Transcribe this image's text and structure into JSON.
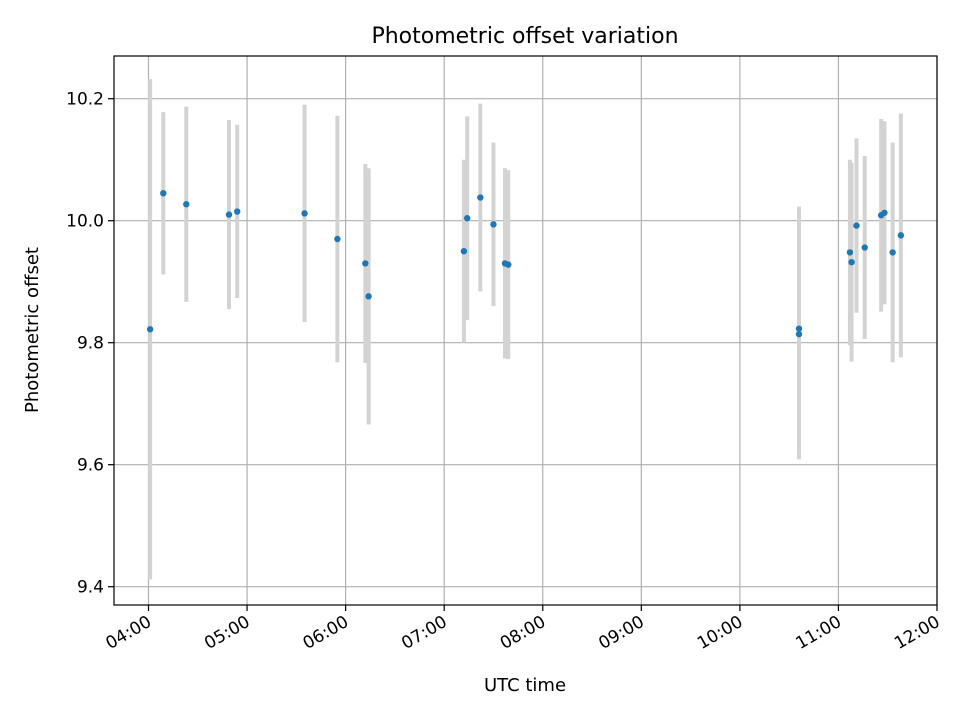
{
  "chart_data": {
    "type": "scatter",
    "title": "Photometric offset variation",
    "xlabel": "UTC time",
    "ylabel": "Photometric offset",
    "x_unit": "time of day (HH:MM)",
    "xlim": [
      "03:39",
      "12:00"
    ],
    "ylim": [
      9.37,
      10.27
    ],
    "x_ticks": [
      "04:00",
      "05:00",
      "06:00",
      "07:00",
      "08:00",
      "09:00",
      "10:00",
      "11:00",
      "12:00"
    ],
    "y_ticks": [
      "9.4",
      "9.6",
      "9.8",
      "10.0",
      "10.2"
    ],
    "grid": true,
    "colors": {
      "point": "#1f77b4",
      "errorbar": "#d3d3d3",
      "grid": "#b0b0b0"
    },
    "points": [
      {
        "x": "04:01",
        "y": 9.822,
        "yerr": 0.41
      },
      {
        "x": "04:09",
        "y": 10.045,
        "yerr": 0.133
      },
      {
        "x": "04:23",
        "y": 10.027,
        "yerr": 0.16
      },
      {
        "x": "04:49",
        "y": 10.01,
        "yerr": 0.155
      },
      {
        "x": "04:54",
        "y": 10.015,
        "yerr": 0.142
      },
      {
        "x": "05:35",
        "y": 10.012,
        "yerr": 0.178
      },
      {
        "x": "05:55",
        "y": 9.97,
        "yerr": 0.202
      },
      {
        "x": "06:12",
        "y": 9.93,
        "yerr": 0.163
      },
      {
        "x": "06:14",
        "y": 9.876,
        "yerr": 0.21
      },
      {
        "x": "07:12",
        "y": 9.95,
        "yerr": 0.15
      },
      {
        "x": "07:14",
        "y": 10.004,
        "yerr": 0.167
      },
      {
        "x": "07:22",
        "y": 10.038,
        "yerr": 0.154
      },
      {
        "x": "07:30",
        "y": 9.994,
        "yerr": 0.134
      },
      {
        "x": "07:37",
        "y": 9.93,
        "yerr": 0.156
      },
      {
        "x": "07:39",
        "y": 9.928,
        "yerr": 0.155
      },
      {
        "x": "10:36",
        "y": 9.823,
        "yerr": 0.2
      },
      {
        "x": "10:36",
        "y": 9.814,
        "yerr": 0.205
      },
      {
        "x": "11:07",
        "y": 9.948,
        "yerr": 0.152
      },
      {
        "x": "11:08",
        "y": 9.932,
        "yerr": 0.163
      },
      {
        "x": "11:11",
        "y": 9.992,
        "yerr": 0.143
      },
      {
        "x": "11:16",
        "y": 9.956,
        "yerr": 0.15
      },
      {
        "x": "11:26",
        "y": 10.009,
        "yerr": 0.158
      },
      {
        "x": "11:28",
        "y": 10.013,
        "yerr": 0.15
      },
      {
        "x": "11:33",
        "y": 9.948,
        "yerr": 0.18
      },
      {
        "x": "11:38",
        "y": 9.976,
        "yerr": 0.2
      }
    ]
  }
}
